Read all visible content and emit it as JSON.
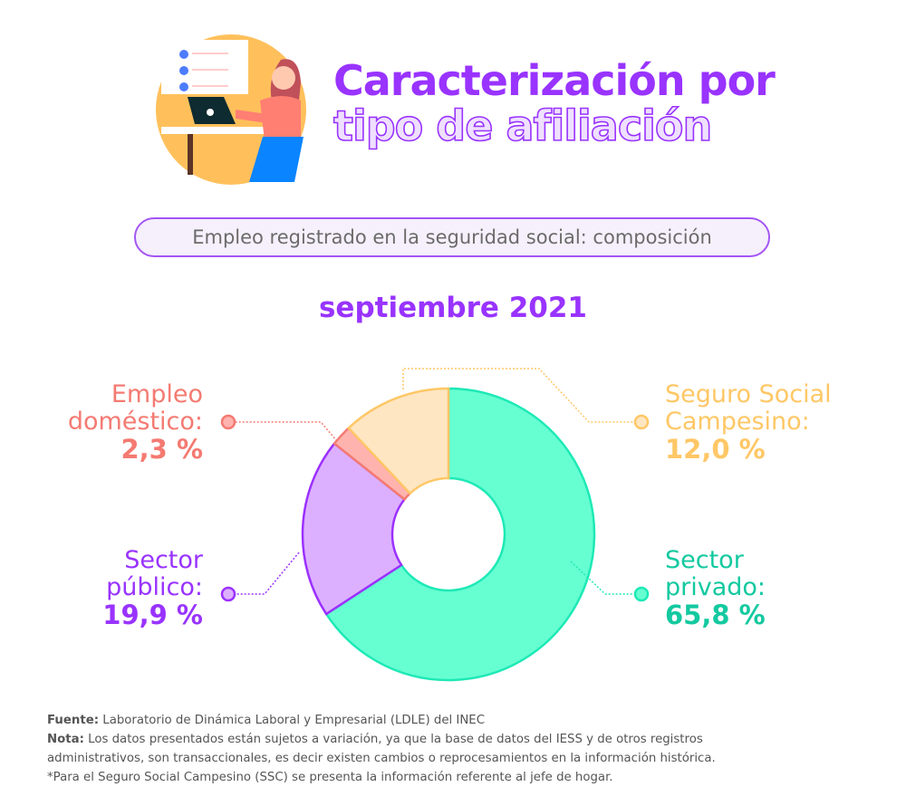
{
  "header": {
    "title_line1": "Caracterización por",
    "title_line2": "tipo de afiliación",
    "subtitle": "Empleo registrado en la seguridad social: composición",
    "period": "septiembre 2021"
  },
  "chart_data": {
    "type": "pie",
    "donut": true,
    "title": "Empleo registrado en la seguridad social: composición",
    "subtitle": "septiembre 2021",
    "unit": "%",
    "slices": [
      {
        "name": "Sector privado:",
        "name_l1": "Sector",
        "name_l2": "privado:",
        "value": 65.8,
        "label": "65,8 %",
        "fill": "#66ffd1",
        "stroke": "#1de9b6",
        "text": "#13c9a0"
      },
      {
        "name": "Sector público:",
        "name_l1": "Sector",
        "name_l2": "público:",
        "value": 19.9,
        "label": "19,9 %",
        "fill": "#ddb0ff",
        "stroke": "#9b30ff",
        "text": "#9933ff"
      },
      {
        "name": "Empleo doméstico:",
        "name_l1": "Empleo",
        "name_l2": "doméstico:",
        "value": 2.3,
        "label": "2,3 %",
        "fill": "#ffb3ae",
        "stroke": "#f47a72",
        "text": "#f47a72"
      },
      {
        "name": "Seguro Social Campesino:",
        "name_l1": "Seguro Social",
        "name_l2": "Campesino:",
        "value": 12.0,
        "label": "12,0 %",
        "fill": "#ffe6c2",
        "stroke": "#ffc766",
        "text": "#ffc766"
      }
    ]
  },
  "notes": {
    "source_label": "Fuente:",
    "source": " Laboratorio de Dinámica Laboral y Empresarial (LDLE) del INEC",
    "note_label": "Nota:",
    "note1": "  Los datos presentados están sujetos a variación, ya que la base de datos del IESS y de otros registros",
    "note2": "administrativos, son transaccionales, es decir existen cambios o reprocesamientos en la información histórica.",
    "note3": "*Para el Seguro Social Campesino (SSC) se presenta la información referente al jefe de hogar."
  }
}
